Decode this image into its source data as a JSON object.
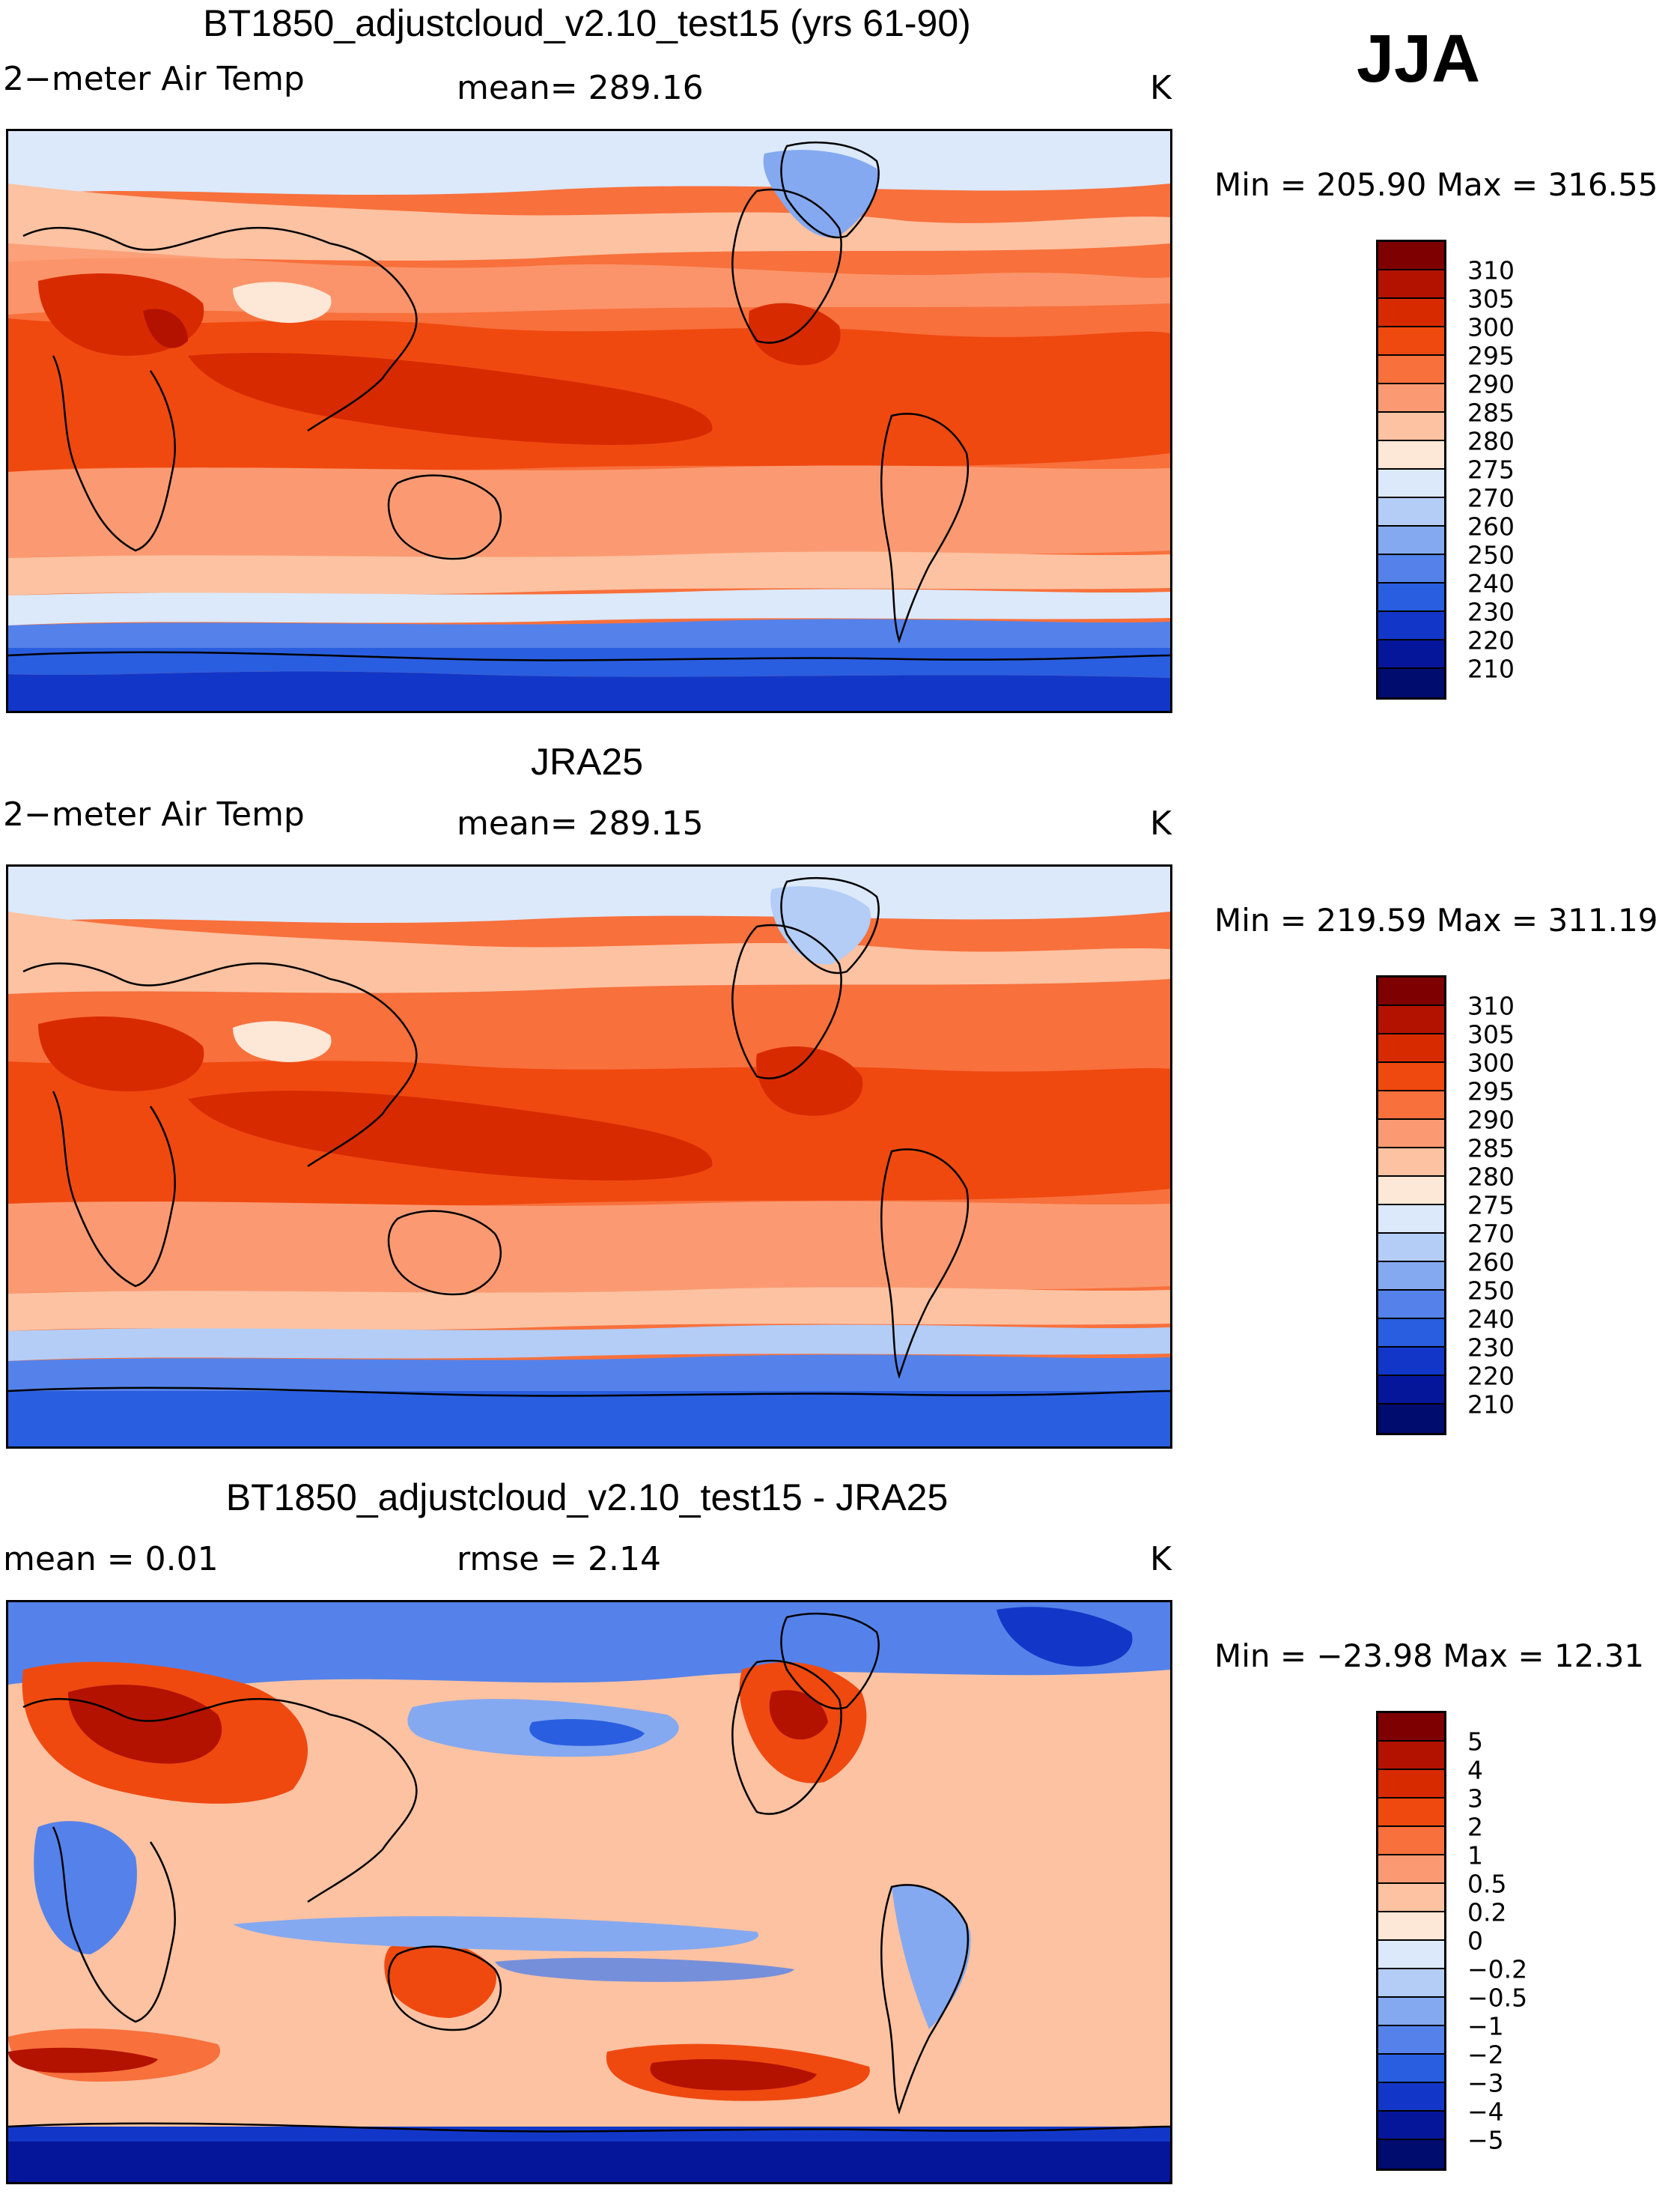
{
  "season": "JJA",
  "panels": [
    {
      "title": "BT1850_adjustcloud_v2.10_test15 (yrs 61-90)",
      "left_label": "2−meter Air Temp",
      "center_label": "mean=  289.16",
      "units": "K",
      "minmax": "Min  =  205.90  Max  =  316.55",
      "colorbar": {
        "levels": [
          "310",
          "305",
          "300",
          "295",
          "290",
          "285",
          "280",
          "275",
          "270",
          "260",
          "250",
          "240",
          "230",
          "220",
          "210"
        ],
        "colors": [
          "#7f0000",
          "#b31200",
          "#d82a00",
          "#ef4910",
          "#f8703c",
          "#fb9a72",
          "#fcc2a2",
          "#fde7d6",
          "#dbe9fb",
          "#b3cdf6",
          "#84a9f0",
          "#5482ea",
          "#2a5ee0",
          "#1237c8",
          "#06169a",
          "#000c6e"
        ]
      }
    },
    {
      "title": "JRA25",
      "left_label": "2−meter Air Temp",
      "center_label": "mean=  289.15",
      "units": "K",
      "minmax": "Min  =  219.59  Max  =  311.19",
      "colorbar": {
        "levels": [
          "310",
          "305",
          "300",
          "295",
          "290",
          "285",
          "280",
          "275",
          "270",
          "260",
          "250",
          "240",
          "230",
          "220",
          "210"
        ],
        "colors": [
          "#7f0000",
          "#b31200",
          "#d82a00",
          "#ef4910",
          "#f8703c",
          "#fb9a72",
          "#fcc2a2",
          "#fde7d6",
          "#dbe9fb",
          "#b3cdf6",
          "#84a9f0",
          "#5482ea",
          "#2a5ee0",
          "#1237c8",
          "#06169a",
          "#000c6e"
        ]
      }
    },
    {
      "title": "BT1850_adjustcloud_v2.10_test15 - JRA25",
      "left_label": "mean  =      0.01",
      "center_label": "rmse  =      2.14",
      "units": "K",
      "minmax": "Min  = −23.98  Max  =    12.31",
      "colorbar": {
        "levels": [
          "5",
          "4",
          "3",
          "2",
          "1",
          "0.5",
          "0.2",
          "0",
          "−0.2",
          "−0.5",
          "−1",
          "−2",
          "−3",
          "−4",
          "−5"
        ],
        "colors": [
          "#7f0000",
          "#b31200",
          "#d82a00",
          "#ef4910",
          "#f8703c",
          "#fb9a72",
          "#fcc2a2",
          "#fde7d6",
          "#dbe9fb",
          "#b3cdf6",
          "#84a9f0",
          "#5482ea",
          "#2a5ee0",
          "#1237c8",
          "#06169a",
          "#000c6e"
        ]
      }
    }
  ]
}
